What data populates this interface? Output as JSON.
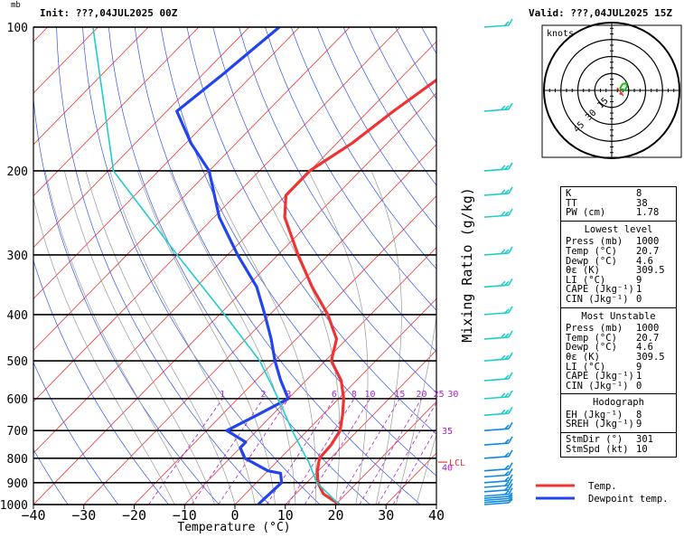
{
  "header": {
    "init": "Init: ???,04JUL2025 00Z",
    "valid": "Valid: ???,04JUL2025 15Z",
    "pressure_unit": "mb"
  },
  "chart_data": {
    "type": "skew-t",
    "xlabel": "Temperature (°C)",
    "mixing_ratio_label": "Mixing Ratio (g/kg)",
    "pressure_levels": [
      100,
      200,
      300,
      400,
      500,
      600,
      700,
      800,
      900,
      1000
    ],
    "temperature_ticks": [
      -40,
      -30,
      -20,
      -10,
      0,
      10,
      20,
      30,
      40
    ],
    "temperature_tick_labels": [
      "−40",
      "−30",
      "−20",
      "−10",
      "0",
      "10",
      "20",
      "30",
      "40"
    ],
    "xlim": [
      -40,
      40
    ],
    "pressure_range": [
      100,
      1000
    ],
    "mixing_ratio_labels": [
      "1",
      "2",
      "3",
      "6",
      "8",
      "10",
      "15",
      "20",
      "25",
      "30",
      "35",
      "40"
    ],
    "lcl_label": "LCL",
    "series": [
      {
        "name": "Temp.",
        "color": "#ee3333",
        "points": [
          [
            1000,
            20.7
          ],
          [
            950,
            15.5
          ],
          [
            900,
            12.2
          ],
          [
            850,
            9.8
          ],
          [
            800,
            7.8
          ],
          [
            750,
            7.5
          ],
          [
            700,
            6.5
          ],
          [
            650,
            4.0
          ],
          [
            600,
            1.0
          ],
          [
            550,
            -3.0
          ],
          [
            500,
            -8.8
          ],
          [
            450,
            -12.0
          ],
          [
            400,
            -18.5
          ],
          [
            350,
            -27
          ],
          [
            300,
            -36
          ],
          [
            250,
            -46
          ],
          [
            225,
            -50
          ],
          [
            200,
            -50
          ],
          [
            175,
            -47
          ],
          [
            150,
            -45
          ],
          [
            125,
            -42
          ],
          [
            100,
            -39
          ]
        ]
      },
      {
        "name": "Dewpoint temp.",
        "color": "#2244ee",
        "points": [
          [
            1000,
            4.6
          ],
          [
            900,
            5.0
          ],
          [
            860,
            3.0
          ],
          [
            850,
            0
          ],
          [
            800,
            -7
          ],
          [
            760,
            -10
          ],
          [
            740,
            -10
          ],
          [
            700,
            -16
          ],
          [
            650,
            -13
          ],
          [
            600,
            -10
          ],
          [
            550,
            -15
          ],
          [
            500,
            -20
          ],
          [
            450,
            -25
          ],
          [
            400,
            -31
          ],
          [
            350,
            -38
          ],
          [
            300,
            -48
          ],
          [
            250,
            -59
          ],
          [
            200,
            -70
          ],
          [
            175,
            -79
          ],
          [
            150,
            -88
          ],
          [
            125,
            -86
          ],
          [
            100,
            -84
          ]
        ]
      },
      {
        "name": "parcel",
        "color": "#22cccc",
        "points": [
          [
            1000,
            20.7
          ],
          [
            900,
            12.0
          ],
          [
            815,
            6.4
          ],
          [
            800,
            5.2
          ],
          [
            700,
            -3
          ],
          [
            600,
            -12
          ],
          [
            500,
            -23
          ],
          [
            400,
            -39
          ],
          [
            300,
            -60
          ],
          [
            200,
            -89
          ],
          [
            100,
            -121
          ]
        ]
      }
    ],
    "wind_barbs": [
      {
        "p": 1000,
        "speed": 5
      },
      {
        "p": 990,
        "speed": 5
      },
      {
        "p": 980,
        "speed": 5
      },
      {
        "p": 970,
        "speed": 5
      },
      {
        "p": 960,
        "speed": 10
      },
      {
        "p": 940,
        "speed": 10
      },
      {
        "p": 920,
        "speed": 10
      },
      {
        "p": 900,
        "speed": 10
      },
      {
        "p": 875,
        "speed": 10
      },
      {
        "p": 850,
        "speed": 10
      },
      {
        "p": 800,
        "speed": 10
      },
      {
        "p": 750,
        "speed": 10
      },
      {
        "p": 700,
        "speed": 10
      },
      {
        "p": 650,
        "speed": 15
      },
      {
        "p": 600,
        "speed": 15
      },
      {
        "p": 550,
        "speed": 10
      },
      {
        "p": 500,
        "speed": 15
      },
      {
        "p": 450,
        "speed": 15
      },
      {
        "p": 400,
        "speed": 10
      },
      {
        "p": 350,
        "speed": 15
      },
      {
        "p": 300,
        "speed": 15
      },
      {
        "p": 250,
        "speed": 15
      },
      {
        "p": 225,
        "speed": 15
      },
      {
        "p": 200,
        "speed": 15
      },
      {
        "p": 150,
        "speed": 15
      },
      {
        "p": 100,
        "speed": 10
      }
    ],
    "legend": [
      {
        "label": "Temp.",
        "color": "#ee3333"
      },
      {
        "label": "Dewpoint temp.",
        "color": "#2244ee"
      }
    ],
    "legend_position": "bottom-right",
    "hodograph": {
      "unit_label": "knots",
      "ring_labels": [
        "15",
        "30",
        "45"
      ],
      "ring_values": [
        15,
        30,
        45,
        60
      ]
    }
  },
  "indices": {
    "general": [
      {
        "label": "K",
        "value": "8"
      },
      {
        "label": "TT",
        "value": "38"
      },
      {
        "label": "PW (cm)",
        "value": "1.78"
      }
    ],
    "lowest": {
      "title": "Lowest level",
      "rows": [
        {
          "label": "Press (mb)",
          "value": "1000"
        },
        {
          "label": "Temp (°C)",
          "value": "20.7"
        },
        {
          "label": "Dewp (°C)",
          "value": "4.6"
        },
        {
          "label": "θε (K)",
          "value": "309.5"
        },
        {
          "label": "LI (°C)",
          "value": "9"
        },
        {
          "label": "CAPE (Jkg⁻¹)",
          "value": "1"
        },
        {
          "label": "CIN (Jkg⁻¹)",
          "value": "0"
        }
      ]
    },
    "unstable": {
      "title": "Most Unstable",
      "rows": [
        {
          "label": "Press (mb)",
          "value": "1000"
        },
        {
          "label": "Temp (°C)",
          "value": "20.7"
        },
        {
          "label": "Dewp (°C)",
          "value": "4.6"
        },
        {
          "label": "θε (K)",
          "value": "309.5"
        },
        {
          "label": "LI (°C)",
          "value": "9"
        },
        {
          "label": "CAPE (Jkg⁻¹)",
          "value": "1"
        },
        {
          "label": "CIN (Jkg⁻¹)",
          "value": "0"
        }
      ]
    },
    "hodograph": {
      "title": "Hodograph",
      "rows": [
        {
          "label": "EH (Jkg⁻¹)",
          "value": "8"
        },
        {
          "label": "SREH (Jkg⁻¹)",
          "value": "9"
        }
      ]
    },
    "storm": [
      {
        "label": "StmDir (°)",
        "value": "301"
      },
      {
        "label": "StmSpd (kt)",
        "value": "10"
      }
    ]
  }
}
